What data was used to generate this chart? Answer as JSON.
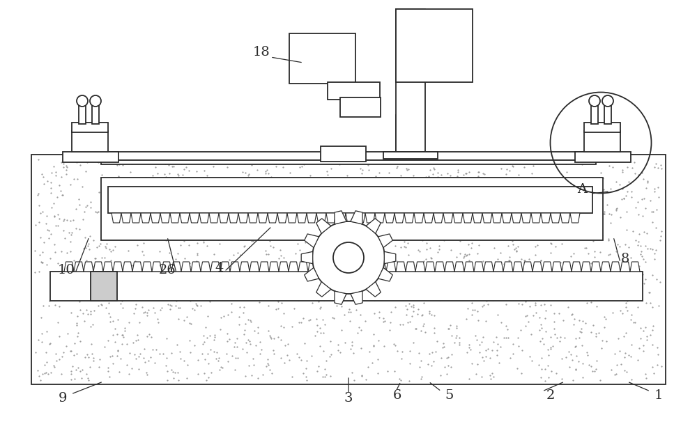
{
  "bg_color": "#ffffff",
  "line_color": "#2a2a2a",
  "figsize": [
    10.0,
    6.19
  ],
  "dpi": 100,
  "speckle_seed": 42,
  "speckle_n": 2000,
  "speckle_color": "#888888",
  "speckle_size": 1.0
}
